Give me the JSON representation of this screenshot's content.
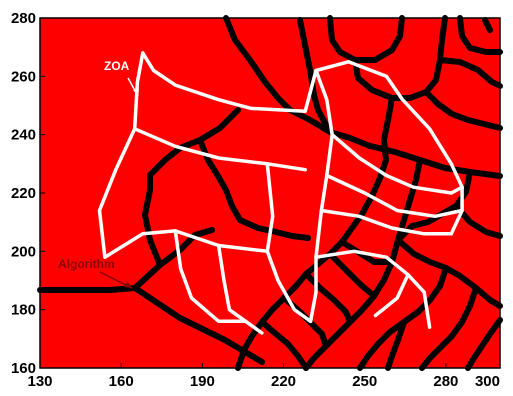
{
  "chart_data": {
    "type": "map",
    "xlim": [
      130,
      300
    ],
    "ylim": [
      160,
      280
    ],
    "x_ticks": [
      "130",
      "160",
      "190",
      "220",
      "250",
      "280",
      "300"
    ],
    "y_ticks": [
      "160",
      "180",
      "200",
      "220",
      "240",
      "260",
      "280"
    ],
    "background_color": "#ff0000",
    "algorithm_line_color": "#000000",
    "zoa_line_color": "#ffffff",
    "annotations": [
      {
        "text": "ZOA",
        "color": "#ffffff"
      },
      {
        "text": "Algorithm",
        "color": "#8b0000"
      }
    ],
    "zoa_boundaries": [
      [
        [
          168,
          268
        ],
        [
          172,
          262
        ],
        [
          180,
          257
        ],
        [
          196,
          252
        ],
        [
          208,
          249
        ],
        [
          228,
          248
        ],
        [
          232,
          262
        ],
        [
          244,
          265
        ]
      ],
      [
        [
          168,
          268
        ],
        [
          166,
          258
        ],
        [
          165,
          242
        ],
        [
          158,
          228
        ],
        [
          152,
          214
        ],
        [
          154,
          198
        ],
        [
          168,
          206
        ],
        [
          180,
          207
        ],
        [
          196,
          202
        ],
        [
          214,
          200
        ]
      ],
      [
        [
          165,
          242
        ],
        [
          180,
          236
        ],
        [
          196,
          232
        ],
        [
          214,
          230
        ],
        [
          228,
          228
        ]
      ],
      [
        [
          214,
          230
        ],
        [
          216,
          212
        ],
        [
          214,
          200
        ],
        [
          218,
          190
        ],
        [
          224,
          180
        ],
        [
          230,
          176
        ]
      ],
      [
        [
          244,
          265
        ],
        [
          258,
          260
        ],
        [
          264,
          252
        ],
        [
          274,
          242
        ],
        [
          282,
          230
        ],
        [
          286,
          222
        ],
        [
          286,
          214
        ],
        [
          282,
          206
        ]
      ],
      [
        [
          232,
          262
        ],
        [
          236,
          252
        ],
        [
          238,
          240
        ],
        [
          236,
          226
        ],
        [
          234,
          214
        ],
        [
          232,
          198
        ],
        [
          232,
          186
        ],
        [
          230,
          176
        ]
      ],
      [
        [
          238,
          240
        ],
        [
          248,
          232
        ],
        [
          258,
          226
        ],
        [
          268,
          222
        ],
        [
          282,
          220
        ],
        [
          286,
          222
        ]
      ],
      [
        [
          236,
          226
        ],
        [
          250,
          220
        ],
        [
          262,
          214
        ],
        [
          276,
          212
        ],
        [
          286,
          214
        ]
      ],
      [
        [
          234,
          214
        ],
        [
          248,
          212
        ],
        [
          260,
          208
        ],
        [
          272,
          206
        ],
        [
          282,
          206
        ]
      ],
      [
        [
          232,
          198
        ],
        [
          246,
          200
        ],
        [
          258,
          198
        ],
        [
          266,
          192
        ],
        [
          272,
          186
        ],
        [
          274,
          174
        ]
      ],
      [
        [
          266,
          192
        ],
        [
          262,
          184
        ],
        [
          254,
          178
        ]
      ],
      [
        [
          196,
          202
        ],
        [
          198,
          190
        ],
        [
          200,
          180
        ],
        [
          206,
          176
        ],
        [
          212,
          172
        ]
      ],
      [
        [
          180,
          207
        ],
        [
          182,
          194
        ],
        [
          186,
          184
        ],
        [
          196,
          176
        ],
        [
          206,
          176
        ]
      ]
    ]
  }
}
